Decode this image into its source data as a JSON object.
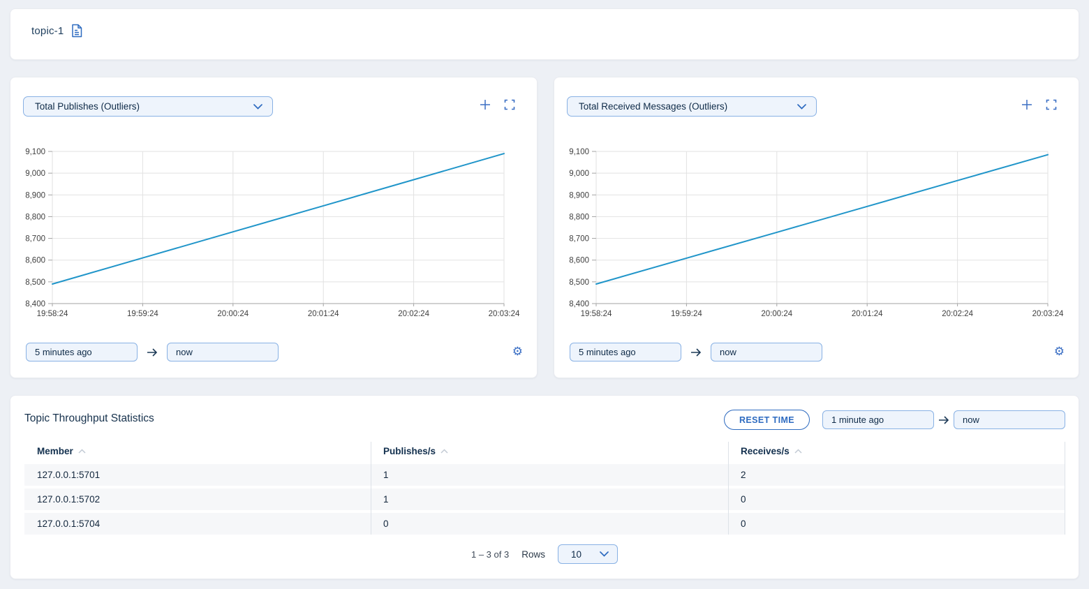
{
  "colors": {
    "accent": "#2e6bc0",
    "line": "#2095c9",
    "grid": "#e2e2e2",
    "axis": "#a3a3a3",
    "control_bg": "#eef4fc",
    "control_border": "#88b1e4"
  },
  "topbar": {
    "title": "topic-1"
  },
  "charts": [
    {
      "metric_label": "Total Publishes (Outliers)",
      "time_from": "5 minutes ago",
      "time_to": "now"
    },
    {
      "metric_label": "Total Received Messages (Outliers)",
      "time_from": "5 minutes ago",
      "time_to": "now"
    }
  ],
  "chart_data": [
    {
      "type": "line",
      "title": "Total Publishes (Outliers)",
      "x": [
        "19:58:24",
        "19:59:24",
        "20:00:24",
        "20:01:24",
        "20:02:24",
        "20:03:24"
      ],
      "series": [
        {
          "name": "Total Publishes",
          "values": [
            8490,
            8610,
            8730,
            8850,
            8970,
            9090
          ]
        }
      ],
      "xlabel": "",
      "ylabel": "",
      "ylim": [
        8400,
        9100
      ],
      "ytick_step": 100,
      "grid": true,
      "legend": false,
      "line_color": "#2095c9"
    },
    {
      "type": "line",
      "title": "Total Received Messages (Outliers)",
      "x": [
        "19:58:24",
        "19:59:24",
        "20:00:24",
        "20:01:24",
        "20:02:24",
        "20:03:24"
      ],
      "series": [
        {
          "name": "Total Received Messages",
          "values": [
            8490,
            8609,
            8728,
            8847,
            8966,
            9085
          ]
        }
      ],
      "xlabel": "",
      "ylabel": "",
      "ylim": [
        8400,
        9100
      ],
      "ytick_step": 100,
      "grid": true,
      "legend": false,
      "line_color": "#2095c9"
    }
  ],
  "stats": {
    "title": "Topic Throughput Statistics",
    "reset_button": "RESET TIME",
    "time_from": "1 minute ago",
    "time_to": "now",
    "columns": [
      "Member",
      "Publishes/s",
      "Receives/s"
    ],
    "rows": [
      {
        "member": "127.0.0.1:5701",
        "publishes": "1",
        "receives": "2"
      },
      {
        "member": "127.0.0.1:5702",
        "publishes": "1",
        "receives": "0"
      },
      {
        "member": "127.0.0.1:5704",
        "publishes": "0",
        "receives": "0"
      }
    ],
    "pagination": {
      "range": "1 – 3 of 3",
      "rows_label": "Rows",
      "page_size": "10"
    }
  }
}
